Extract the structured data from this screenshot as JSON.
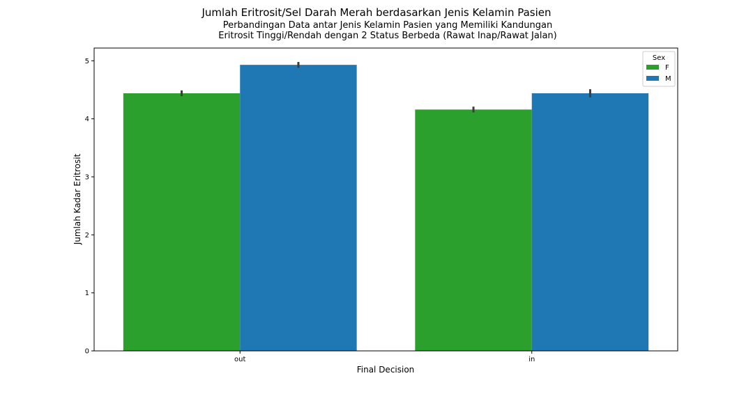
{
  "chart_data": {
    "type": "bar",
    "title": "Jumlah Eritrosit/Sel Darah Merah berdasarkan Jenis Kelamin Pasien",
    "subtitle": "Perbandingan Data antar Jenis Kelamin Pasien yang Memiliki Kandungan\nEritrosit Tinggi/Rendah dengan 2 Status Berbeda (Rawat Inap/Rawat Jalan)",
    "xlabel": "Final Decision",
    "ylabel": "Jumlah Kadar Eritrosit",
    "categories": [
      "out",
      "in"
    ],
    "series": [
      {
        "name": "F",
        "color": "#2ca02c",
        "values": [
          4.44,
          4.16
        ],
        "err_low": [
          4.39,
          4.11
        ],
        "err_high": [
          4.49,
          4.21
        ]
      },
      {
        "name": "M",
        "color": "#1f77b4",
        "values": [
          4.93,
          4.44
        ],
        "err_low": [
          4.88,
          4.37
        ],
        "err_high": [
          4.98,
          4.51
        ]
      }
    ],
    "ylim": [
      0,
      5.22
    ],
    "yticks": [
      0,
      1,
      2,
      3,
      4,
      5
    ],
    "legend": {
      "title": "Sex",
      "placement": "top-right"
    },
    "grid": false
  }
}
